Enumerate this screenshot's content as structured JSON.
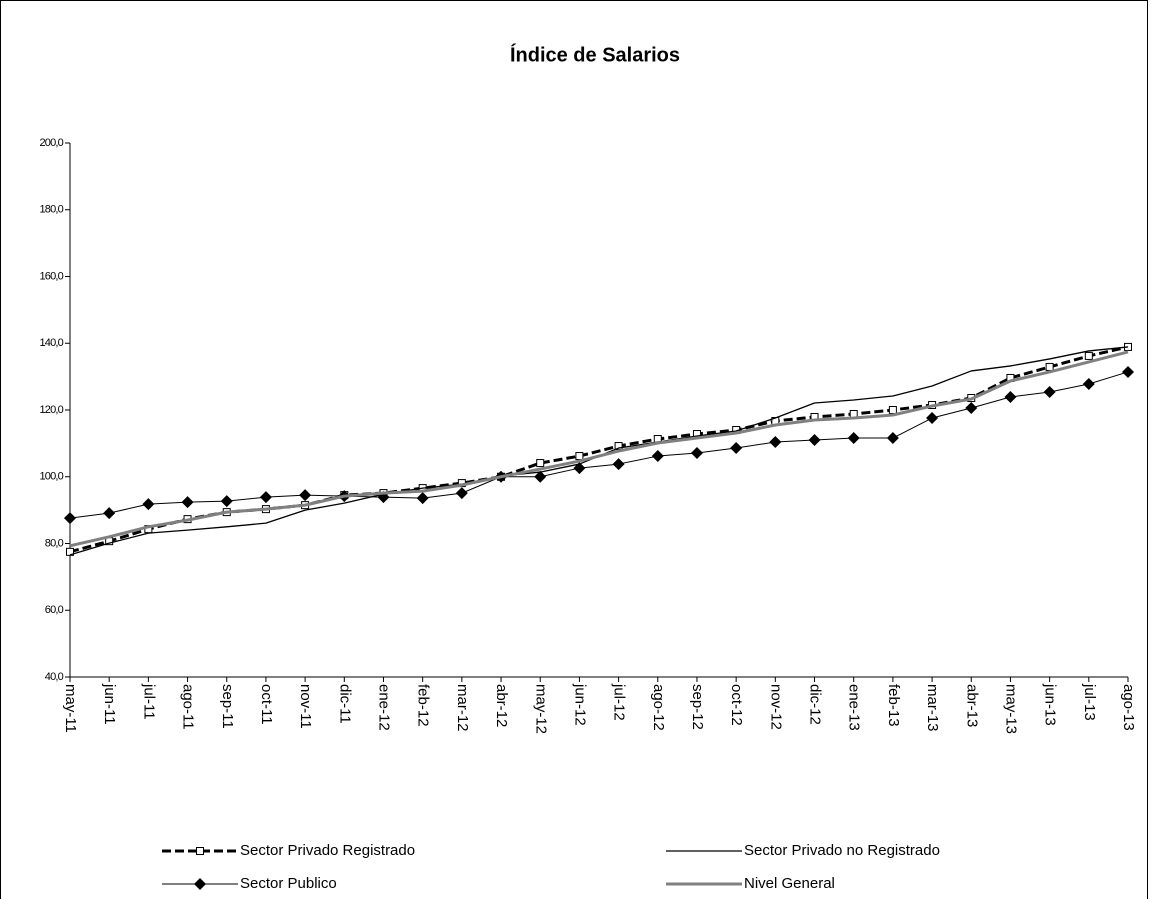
{
  "chart_data": {
    "type": "line",
    "title": "Índice de Salarios",
    "categories": [
      "may-11",
      "jun-11",
      "jul-11",
      "ago-11",
      "sep-11",
      "oct-11",
      "nov-11",
      "dic-11",
      "ene-12",
      "feb-12",
      "mar-12",
      "abr-12",
      "may-12",
      "jun-12",
      "jul-12",
      "ago-12",
      "sep-12",
      "oct-12",
      "nov-12",
      "dic-12",
      "ene-13",
      "feb-13",
      "mar-13",
      "abr-13",
      "may-13",
      "jun-13",
      "jul-13",
      "ago-13"
    ],
    "series": [
      {
        "name": "Sector Privado Registrado",
        "color": "#000000",
        "dash": true,
        "marker": "square",
        "width": 3,
        "values": [
          77.5,
          80.7,
          84.3,
          87.3,
          89.4,
          90.3,
          91.5,
          94.5,
          95.1,
          96.6,
          98.1,
          100,
          104.1,
          106.2,
          109.2,
          111.3,
          112.8,
          114,
          116.7,
          117.9,
          118.8,
          120,
          121.5,
          123.6,
          129.6,
          132.9,
          136.2,
          138.9
        ]
      },
      {
        "name": "Sector Privado no Registrado",
        "color": "#000000",
        "dash": false,
        "marker": "none",
        "width": 1.3,
        "values": [
          76.6,
          80.1,
          83.1,
          84,
          85,
          86.1,
          90,
          92.1,
          94.8,
          96.6,
          97.8,
          100.2,
          101.4,
          103.8,
          108.6,
          110.4,
          112.2,
          113.7,
          117.6,
          122.1,
          123,
          124.2,
          127.2,
          131.7,
          133.2,
          135.3,
          137.7,
          138.9
        ]
      },
      {
        "name": "Sector Publico",
        "color": "#000000",
        "dash": false,
        "marker": "diamond",
        "width": 1,
        "values": [
          87.6,
          89.1,
          91.8,
          92.4,
          92.7,
          93.9,
          94.5,
          94.2,
          93.9,
          93.6,
          95.1,
          100,
          100,
          102.6,
          103.8,
          106.2,
          107.1,
          108.6,
          110.4,
          111,
          111.6,
          111.6,
          117.6,
          120.6,
          123.9,
          125.4,
          127.8,
          131.4
        ]
      },
      {
        "name": "Nivel General",
        "color": "#808080",
        "dash": false,
        "marker": "none",
        "width": 3,
        "values": [
          79.3,
          82,
          85,
          87,
          89.4,
          90.3,
          91.5,
          94.2,
          95.1,
          95.7,
          97.5,
          100,
          102.3,
          104.7,
          107.7,
          110.1,
          111.6,
          113.1,
          115.5,
          117,
          117.6,
          118.5,
          121.2,
          123.3,
          128.7,
          131.4,
          134.4,
          137.4
        ]
      }
    ],
    "ylim": [
      40,
      200
    ],
    "yticks": [
      {
        "value": 40,
        "label": "40,0"
      },
      {
        "value": 60,
        "label": "60,0"
      },
      {
        "value": 80,
        "label": "80,0"
      },
      {
        "value": 100,
        "label": "100,0"
      },
      {
        "value": 120,
        "label": "120,0"
      },
      {
        "value": 140,
        "label": "140,0"
      },
      {
        "value": 160,
        "label": "160,0"
      },
      {
        "value": 180,
        "label": "180,0"
      },
      {
        "value": 200,
        "label": "200,0"
      }
    ],
    "legend": "bottom"
  }
}
